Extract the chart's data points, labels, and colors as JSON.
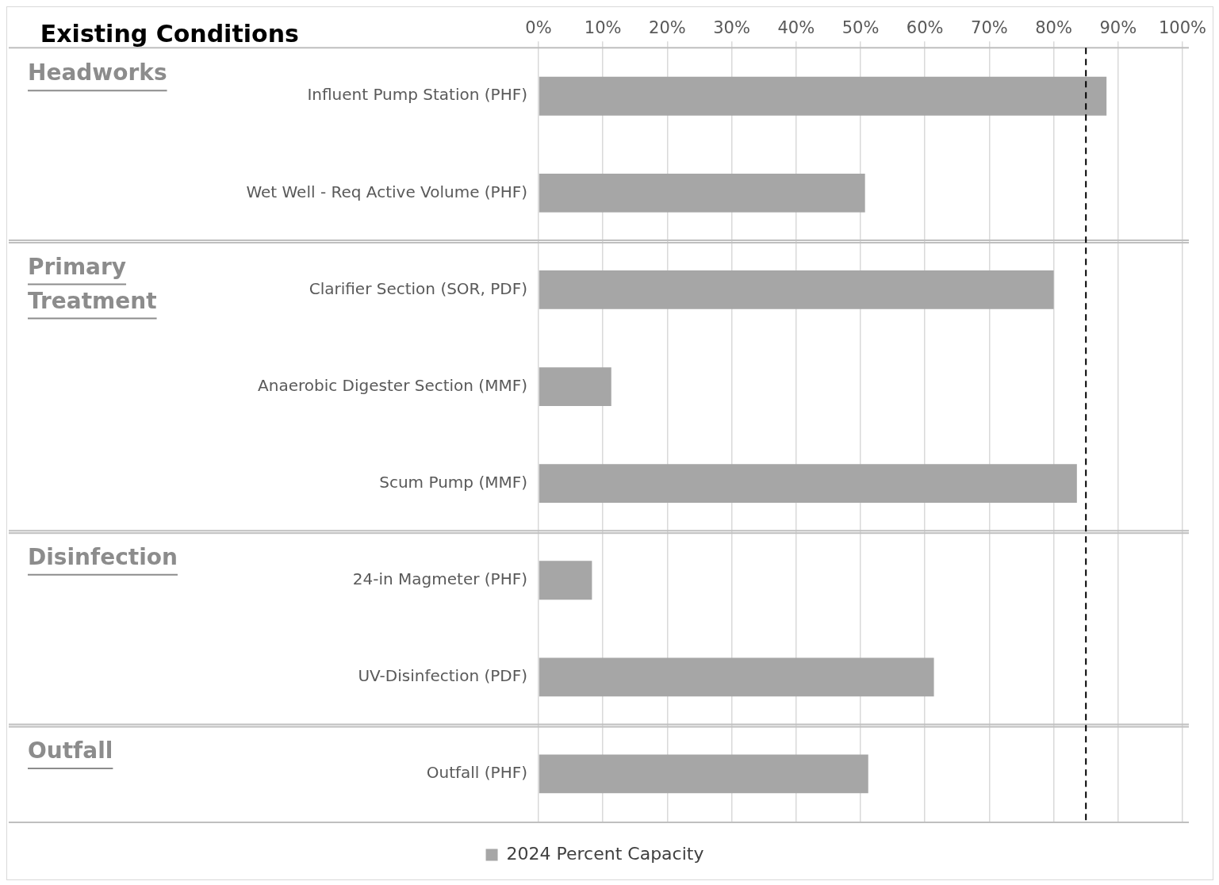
{
  "chart_data": {
    "type": "bar",
    "orientation": "horizontal",
    "title": "Existing Conditions",
    "categories": [
      "Influent Pump Station (PHF)",
      "Wet Well - Req Active Volume (PHF)",
      "Clarifier Section (SOR, PDF)",
      "Anaerobic Digester Section (MMF)",
      "Scum Pump (MMF)",
      "24-in Magmeter (PHF)",
      "UV-Disinfection (PDF)",
      "Outfall (PHF)"
    ],
    "series": [
      {
        "name": "2024 Percent Capacity",
        "color": "#a6a6a6",
        "values": [
          88.2,
          50.7,
          80.0,
          11.3,
          83.6,
          8.3,
          61.4,
          51.2
        ]
      }
    ],
    "xlim": [
      0,
      100
    ],
    "xticks": [
      {
        "value": 0,
        "label": "0%"
      },
      {
        "value": 10,
        "label": "10%"
      },
      {
        "value": 20,
        "label": "20%"
      },
      {
        "value": 30,
        "label": "30%"
      },
      {
        "value": 40,
        "label": "40%"
      },
      {
        "value": 50,
        "label": "50%"
      },
      {
        "value": 60,
        "label": "60%"
      },
      {
        "value": 70,
        "label": "70%"
      },
      {
        "value": 80,
        "label": "80%"
      },
      {
        "value": 90,
        "label": "90%"
      },
      {
        "value": 100,
        "label": "100%"
      }
    ],
    "ref_lines": [
      {
        "axis": "x",
        "value": 85,
        "color": "#000000",
        "line_style": "dashed"
      }
    ],
    "annotations": [
      "Headworks",
      "Primary Treatment",
      "Disinfection",
      "Outfall"
    ],
    "grid": "x",
    "legend": "bottom"
  }
}
